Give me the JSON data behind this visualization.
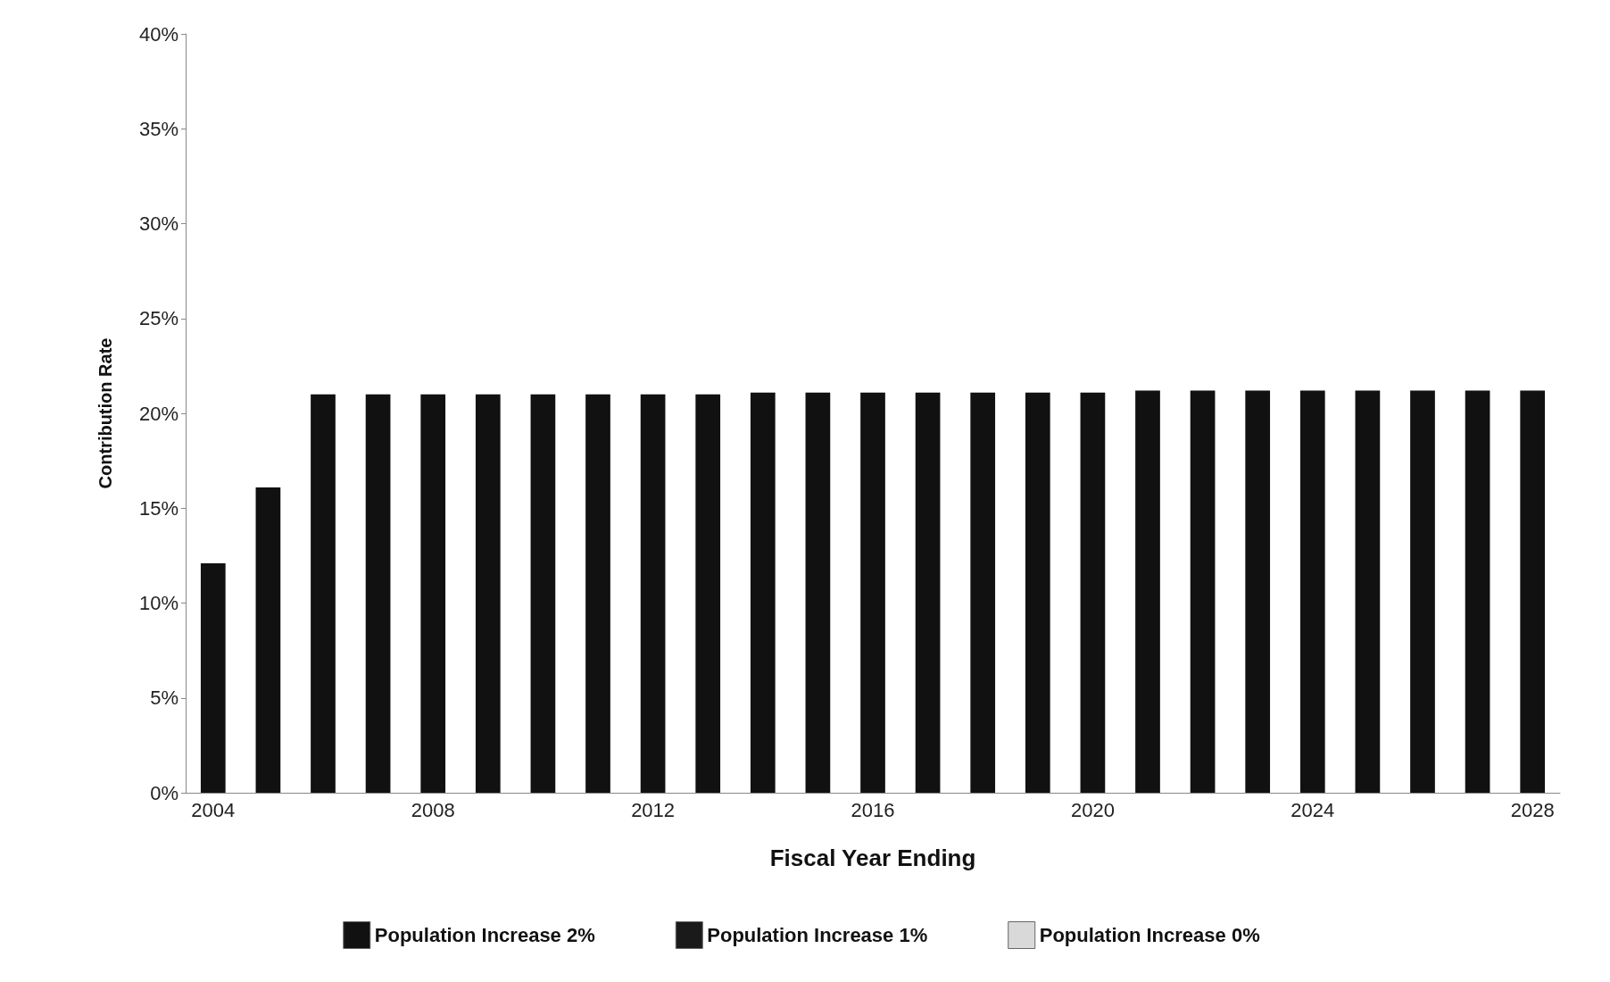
{
  "chart_data": {
    "type": "bar",
    "xlabel": "Fiscal Year Ending",
    "ylabel": "Contribution Rate",
    "categories": [
      "2004",
      null,
      null,
      null,
      "2008",
      null,
      null,
      null,
      "2012",
      null,
      null,
      null,
      "2016",
      null,
      null,
      null,
      "2020",
      null,
      null,
      null,
      "2024",
      null,
      null,
      null,
      "2028"
    ],
    "series": [
      {
        "name": "Population Increase 2%",
        "color": "#111111",
        "values": [
          12.1,
          16.1,
          21.0,
          21.0,
          21.0,
          21.0,
          21.0,
          21.0,
          21.0,
          21.0,
          21.1,
          21.1,
          21.1,
          21.1,
          21.1,
          21.1,
          21.1,
          21.2,
          21.2,
          21.2,
          21.2,
          21.2,
          21.2,
          21.2,
          21.2
        ]
      },
      {
        "name": "Population Increase 1%",
        "color": "#1a1a1a",
        "values": [
          null,
          null,
          null,
          null,
          null,
          null,
          null,
          null,
          null,
          null,
          null,
          null,
          null,
          null,
          null,
          null,
          null,
          null,
          null,
          null,
          null,
          null,
          null,
          null,
          null
        ]
      },
      {
        "name": "Population Increase 0%",
        "color": "#d9d9d9",
        "values": [
          null,
          null,
          null,
          null,
          null,
          null,
          null,
          null,
          null,
          null,
          null,
          null,
          null,
          null,
          null,
          null,
          null,
          null,
          null,
          null,
          null,
          null,
          null,
          null,
          null
        ]
      }
    ],
    "ylim": [
      0,
      40
    ],
    "yticks": [
      {
        "value": 0,
        "label": "0%"
      },
      {
        "value": 5,
        "label": "5%"
      },
      {
        "value": 10,
        "label": "10%"
      },
      {
        "value": 15,
        "label": "15%"
      },
      {
        "value": 20,
        "label": "20%"
      },
      {
        "value": 25,
        "label": "25%"
      },
      {
        "value": 30,
        "label": "30%"
      },
      {
        "value": 35,
        "label": "35%"
      },
      {
        "value": 40,
        "label": "40%"
      }
    ],
    "grid": false,
    "legend": "bottom"
  }
}
